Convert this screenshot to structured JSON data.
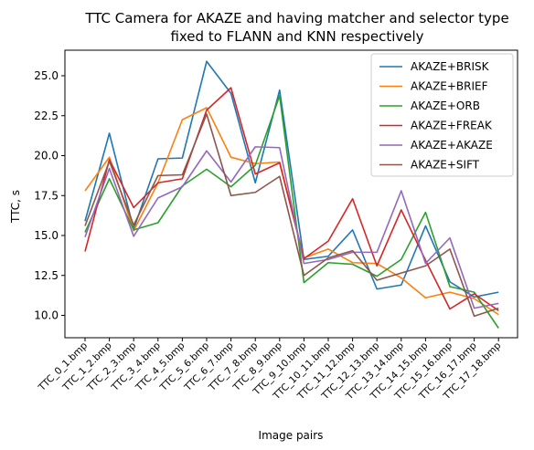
{
  "chart_data": {
    "type": "line",
    "title_lines": [
      "TTC Camera for AKAZE and having matcher and selector type",
      "fixed to FLANN and KNN respectively"
    ],
    "xlabel": "Image pairs",
    "ylabel": "TTC, s",
    "ylim": [
      8.6,
      26.6
    ],
    "yticks": [
      10.0,
      12.5,
      15.0,
      17.5,
      20.0,
      22.5,
      25.0
    ],
    "ytick_labels": [
      "10.0",
      "12.5",
      "15.0",
      "17.5",
      "20.0",
      "22.5",
      "25.0"
    ],
    "legend_position": "top-right",
    "grid": false,
    "categories": [
      "TTC_0_1.bmp",
      "TTC_1_2.bmp",
      "TTC_2_3.bmp",
      "TTC_3_4.bmp",
      "TTC_4_5.bmp",
      "TTC_5_6.bmp",
      "TTC_6_7.bmp",
      "TTC_7_8.bmp",
      "TTC_8_9.bmp",
      "TTC_9_10.bmp",
      "TTC_10_11.bmp",
      "TTC_11_12.bmp",
      "TTC_12_13.bmp",
      "TTC_13_14.bmp",
      "TTC_14_15.bmp",
      "TTC_15_16.bmp",
      "TTC_16_17.bmp",
      "TTC_17_18.bmp"
    ],
    "series": [
      {
        "name": "AKAZE+BRISK",
        "color": "#1f77b4",
        "values": [
          15.9,
          21.4,
          15.4,
          19.8,
          19.85,
          25.9,
          23.9,
          18.3,
          24.1,
          13.5,
          13.7,
          15.35,
          11.65,
          11.9,
          15.6,
          12.1,
          11.15,
          11.45
        ]
      },
      {
        "name": "AKAZE+BRIEF",
        "color": "#ff7f0e",
        "values": [
          17.8,
          19.9,
          15.3,
          18.3,
          22.25,
          23.0,
          19.9,
          19.5,
          19.6,
          13.6,
          14.15,
          13.3,
          13.25,
          12.35,
          11.1,
          11.45,
          11.05,
          10.05
        ]
      },
      {
        "name": "AKAZE+ORB",
        "color": "#2ca02c",
        "values": [
          15.2,
          18.55,
          15.35,
          15.8,
          18.1,
          19.15,
          18.05,
          19.4,
          23.75,
          12.05,
          13.3,
          13.2,
          12.45,
          13.5,
          16.45,
          11.8,
          11.45,
          9.2
        ]
      },
      {
        "name": "AKAZE+FREAK",
        "color": "#d62728",
        "values": [
          14.0,
          19.75,
          16.75,
          18.3,
          18.55,
          22.85,
          24.25,
          18.85,
          19.55,
          13.55,
          14.65,
          17.3,
          13.1,
          16.6,
          13.45,
          10.4,
          11.35,
          10.3
        ]
      },
      {
        "name": "AKAZE+AKAZE",
        "color": "#9467bd",
        "values": [
          14.9,
          19.2,
          14.95,
          17.35,
          18.05,
          20.3,
          18.35,
          20.55,
          20.5,
          13.25,
          13.5,
          13.95,
          13.95,
          17.8,
          13.25,
          14.85,
          10.45,
          10.75
        ]
      },
      {
        "name": "AKAZE+SIFT",
        "color": "#8c564b",
        "values": [
          15.6,
          19.65,
          15.65,
          18.75,
          18.8,
          22.6,
          17.5,
          17.7,
          18.7,
          12.5,
          13.6,
          14.05,
          12.2,
          12.65,
          13.1,
          14.15,
          9.95,
          10.45
        ]
      }
    ]
  }
}
